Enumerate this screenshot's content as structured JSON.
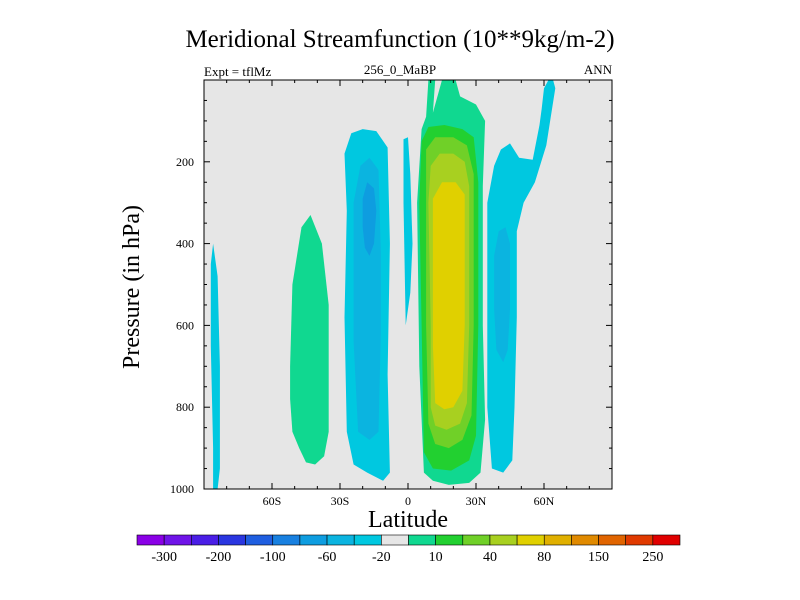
{
  "chart_data": {
    "type": "heatmap",
    "title": "Meridional Streamfunction (10**9kg/m-2)",
    "left_label": "Expt = tflMz",
    "center_label": "256_0_MaBP",
    "right_label": "ANN",
    "xlabel": "Latitude",
    "ylabel": "Pressure (in hPa)",
    "xlim": [
      -90,
      90
    ],
    "ylim": [
      1000,
      0
    ],
    "x_ticks": [
      {
        "value": -60,
        "label": "60S"
      },
      {
        "value": -30,
        "label": "30S"
      },
      {
        "value": 0,
        "label": "0"
      },
      {
        "value": 30,
        "label": "30N"
      },
      {
        "value": 60,
        "label": "60N"
      }
    ],
    "y_ticks": [
      {
        "value": 200,
        "label": "200"
      },
      {
        "value": 400,
        "label": "400"
      },
      {
        "value": 600,
        "label": "600"
      },
      {
        "value": 800,
        "label": "800"
      },
      {
        "value": 1000,
        "label": "1000"
      }
    ],
    "background_color": "#e6e6e6",
    "colorbar": {
      "labels": [
        "-300",
        "-200",
        "-100",
        "-60",
        "-20",
        "10",
        "40",
        "80",
        "150",
        "250"
      ],
      "colors": [
        "#8a00e6",
        "#6f14e8",
        "#4a1ee6",
        "#2a36e0",
        "#1f5ee0",
        "#1880e0",
        "#0e9de0",
        "#0bb4e0",
        "#00c8e0",
        "#e6e6e6",
        "#10d890",
        "#22d030",
        "#70d028",
        "#a8d020",
        "#e0d000",
        "#e0b000",
        "#e08a00",
        "#e06400",
        "#e03a00",
        "#e00000"
      ]
    },
    "contour_bands": [
      {
        "name": "band-sh-cyan-far",
        "color": "#00c8e0",
        "points": [
          [
            -86,
            1000
          ],
          [
            -85,
            1000
          ],
          [
            -84,
            1000
          ],
          [
            -83,
            950
          ],
          [
            -83,
            700
          ],
          [
            -84,
            480
          ],
          [
            -86,
            400
          ],
          [
            -87,
            450
          ],
          [
            -87,
            650
          ],
          [
            -86,
            900
          ]
        ]
      },
      {
        "name": "band-sh-green",
        "color": "#10d890",
        "points": [
          [
            -52,
            700
          ],
          [
            -51,
            500
          ],
          [
            -47,
            360
          ],
          [
            -43,
            330
          ],
          [
            -38,
            400
          ],
          [
            -35,
            550
          ],
          [
            -35,
            860
          ],
          [
            -37,
            920
          ],
          [
            -41,
            940
          ],
          [
            -45,
            935
          ],
          [
            -48,
            900
          ],
          [
            -51,
            860
          ],
          [
            -52,
            780
          ]
        ]
      },
      {
        "name": "band-sh-cyan-outer",
        "color": "#00c8e0",
        "points": [
          [
            -28,
            180
          ],
          [
            -25,
            130
          ],
          [
            -20,
            120
          ],
          [
            -14,
            125
          ],
          [
            -9,
            165
          ],
          [
            -8,
            400
          ],
          [
            -9,
            720
          ],
          [
            -8,
            960
          ],
          [
            -11,
            980
          ],
          [
            -18,
            960
          ],
          [
            -24,
            940
          ],
          [
            -27,
            860
          ],
          [
            -28,
            580
          ],
          [
            -27,
            320
          ]
        ]
      },
      {
        "name": "band-sh-cyan-mid",
        "color": "#0bb4e0",
        "points": [
          [
            -24,
            300
          ],
          [
            -21,
            210
          ],
          [
            -17,
            190
          ],
          [
            -13,
            220
          ],
          [
            -12,
            420
          ],
          [
            -12,
            620
          ],
          [
            -13,
            860
          ],
          [
            -17,
            880
          ],
          [
            -22,
            860
          ],
          [
            -24,
            640
          ],
          [
            -24,
            400
          ]
        ]
      },
      {
        "name": "band-sh-cyan-core",
        "color": "#0e9de0",
        "points": [
          [
            -20,
            290
          ],
          [
            -18,
            250
          ],
          [
            -15,
            265
          ],
          [
            -14,
            320
          ],
          [
            -15,
            400
          ],
          [
            -17,
            430
          ],
          [
            -19,
            410
          ],
          [
            -20,
            360
          ]
        ]
      },
      {
        "name": "band-eq-cyan-strip",
        "color": "#00c8e0",
        "points": [
          [
            -2,
            145
          ],
          [
            0,
            140
          ],
          [
            1,
            230
          ],
          [
            2,
            400
          ],
          [
            1,
            520
          ],
          [
            -1,
            600
          ],
          [
            -2,
            300
          ]
        ]
      },
      {
        "name": "band-nh-green-outer",
        "color": "#10d890",
        "points": [
          [
            10,
            0
          ],
          [
            12,
            0
          ],
          [
            11,
            80
          ],
          [
            15,
            0
          ],
          [
            21,
            0
          ],
          [
            23,
            40
          ],
          [
            30,
            60
          ],
          [
            34,
            100
          ],
          [
            33,
            260
          ],
          [
            33,
            600
          ],
          [
            34,
            830
          ],
          [
            32,
            960
          ],
          [
            27,
            985
          ],
          [
            18,
            990
          ],
          [
            11,
            980
          ],
          [
            7,
            960
          ],
          [
            5,
            700
          ],
          [
            4,
            300
          ],
          [
            6,
            120
          ],
          [
            8,
            90
          ],
          [
            9,
            0
          ]
        ]
      },
      {
        "name": "band-nh-green-mid",
        "color": "#22d030",
        "points": [
          [
            6,
            150
          ],
          [
            9,
            115
          ],
          [
            16,
            110
          ],
          [
            24,
            120
          ],
          [
            29,
            140
          ],
          [
            31,
            250
          ],
          [
            31,
            600
          ],
          [
            30,
            870
          ],
          [
            27,
            930
          ],
          [
            19,
            955
          ],
          [
            11,
            950
          ],
          [
            7,
            910
          ],
          [
            6,
            600
          ],
          [
            5,
            300
          ]
        ]
      },
      {
        "name": "band-nh-lightgreen",
        "color": "#70d028",
        "points": [
          [
            8,
            170
          ],
          [
            12,
            140
          ],
          [
            20,
            140
          ],
          [
            26,
            160
          ],
          [
            29,
            230
          ],
          [
            29,
            600
          ],
          [
            28,
            820
          ],
          [
            24,
            880
          ],
          [
            18,
            900
          ],
          [
            12,
            890
          ],
          [
            9,
            840
          ],
          [
            8,
            600
          ],
          [
            8,
            300
          ]
        ]
      },
      {
        "name": "band-nh-yellowgreen",
        "color": "#a8d020",
        "points": [
          [
            10,
            210
          ],
          [
            14,
            180
          ],
          [
            20,
            180
          ],
          [
            25,
            200
          ],
          [
            27,
            260
          ],
          [
            27,
            600
          ],
          [
            26,
            790
          ],
          [
            23,
            840
          ],
          [
            17,
            855
          ],
          [
            12,
            845
          ],
          [
            10,
            800
          ],
          [
            10,
            600
          ],
          [
            9,
            300
          ]
        ]
      },
      {
        "name": "band-nh-yellow",
        "color": "#e0d000",
        "points": [
          [
            11,
            290
          ],
          [
            15,
            250
          ],
          [
            21,
            250
          ],
          [
            25,
            280
          ],
          [
            25,
            600
          ],
          [
            24,
            760
          ],
          [
            20,
            800
          ],
          [
            16,
            805
          ],
          [
            12,
            790
          ],
          [
            11,
            650
          ],
          [
            11,
            400
          ]
        ]
      },
      {
        "name": "band-nh-cyan-right",
        "color": "#00c8e0",
        "points": [
          [
            35,
            300
          ],
          [
            38,
            210
          ],
          [
            41,
            170
          ],
          [
            45,
            155
          ],
          [
            49,
            190
          ],
          [
            55,
            195
          ],
          [
            58,
            110
          ],
          [
            59,
            70
          ],
          [
            60,
            20
          ],
          [
            62,
            0
          ],
          [
            64,
            0
          ],
          [
            65,
            20
          ],
          [
            63,
            90
          ],
          [
            61,
            160
          ],
          [
            56,
            250
          ],
          [
            51,
            300
          ],
          [
            48,
            370
          ],
          [
            48,
            580
          ],
          [
            47,
            800
          ],
          [
            46,
            930
          ],
          [
            42,
            960
          ],
          [
            37,
            950
          ],
          [
            35,
            800
          ],
          [
            35,
            500
          ]
        ]
      },
      {
        "name": "band-nh-cyan-inner",
        "color": "#0bb4e0",
        "points": [
          [
            38,
            430
          ],
          [
            40,
            370
          ],
          [
            43,
            360
          ],
          [
            45,
            400
          ],
          [
            45,
            560
          ],
          [
            44,
            660
          ],
          [
            42,
            690
          ],
          [
            39,
            660
          ],
          [
            38,
            560
          ]
        ]
      }
    ]
  }
}
